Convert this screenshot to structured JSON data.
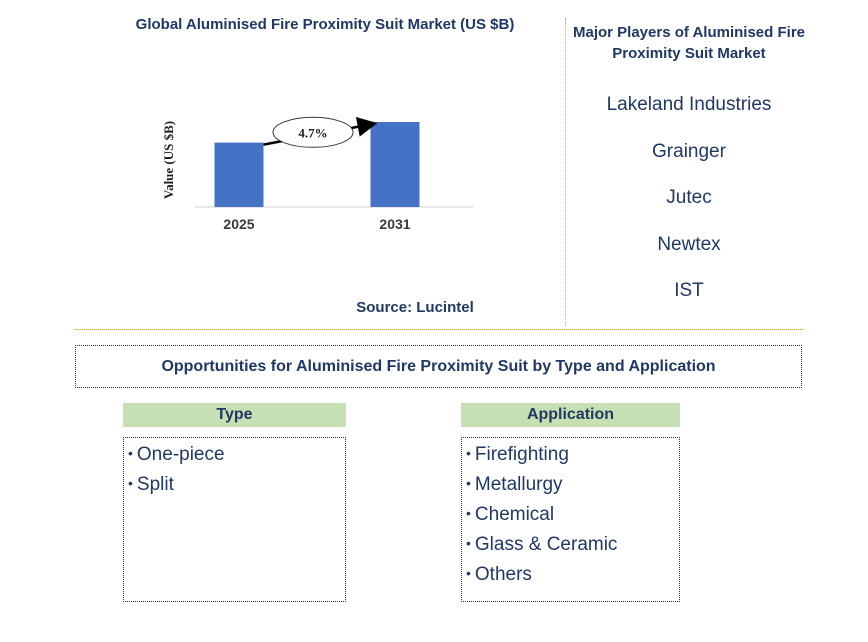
{
  "chart_title": "Global Aluminised Fire Proximity Suit Market (US $B)",
  "source": "Source: Lucintel",
  "chart_data": {
    "type": "bar",
    "categories": [
      "2025",
      "2031"
    ],
    "values": [
      1.0,
      1.32
    ],
    "ylabel": "Value (US $B)",
    "xlabel": "",
    "bar_color": "#4472c4",
    "annotation": "4.7%",
    "grid": false
  },
  "players": {
    "title": "Major Players of Aluminised Fire Proximity Suit Market",
    "items": [
      "Lakeland Industries",
      "Grainger",
      "Jutec",
      "Newtex",
      "IST"
    ]
  },
  "opportunities": {
    "title": "Opportunities for Aluminised Fire Proximity Suit by Type and Application",
    "type": {
      "header": "Type",
      "items": [
        "One-piece",
        "Split"
      ]
    },
    "application": {
      "header": "Application",
      "items": [
        "Firefighting",
        "Metallurgy",
        "Chemical",
        "Glass & Ceramic",
        "Others"
      ]
    }
  }
}
